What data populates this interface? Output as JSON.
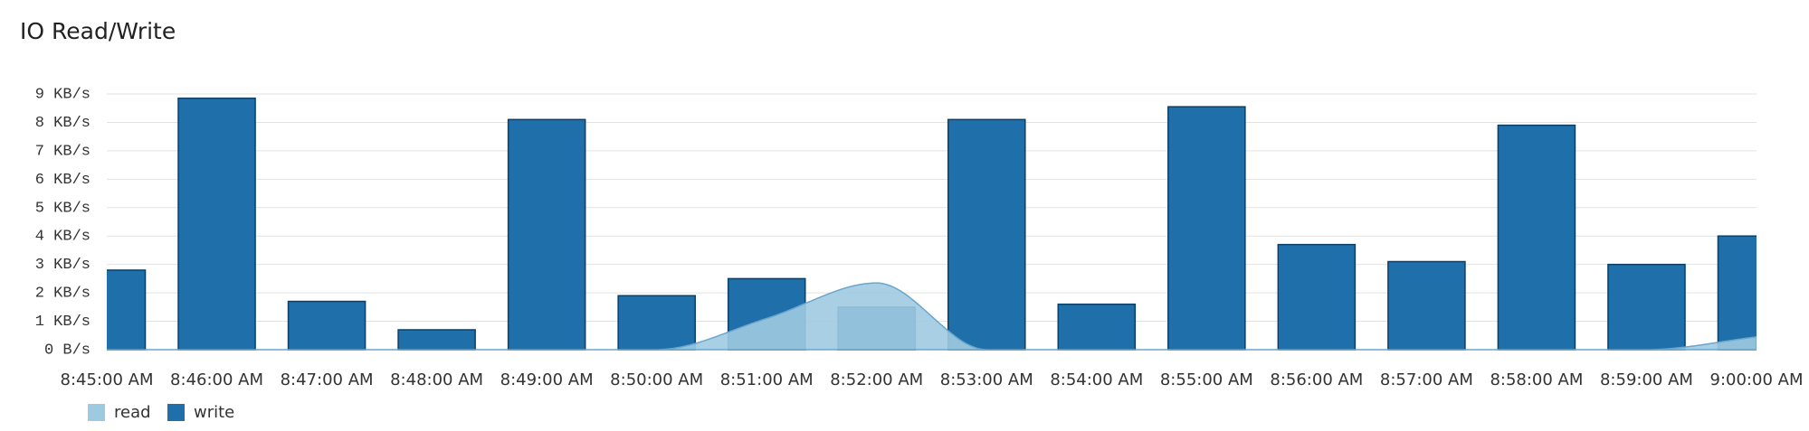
{
  "chart_data": {
    "type": "bar-area",
    "title": "IO Read/Write",
    "categories": [
      "8:45:00 AM",
      "8:46:00 AM",
      "8:47:00 AM",
      "8:48:00 AM",
      "8:49:00 AM",
      "8:50:00 AM",
      "8:51:00 AM",
      "8:52:00 AM",
      "8:53:00 AM",
      "8:54:00 AM",
      "8:55:00 AM",
      "8:56:00 AM",
      "8:57:00 AM",
      "8:58:00 AM",
      "8:59:00 AM",
      "9:00:00 AM"
    ],
    "series": [
      {
        "name": "read",
        "color": "#9ecae1",
        "values": [
          0,
          0,
          0,
          0,
          0,
          0,
          1.1,
          2.35,
          0,
          0,
          0,
          0,
          0,
          0,
          0,
          0.45
        ]
      },
      {
        "name": "write",
        "color": "#1f6fab",
        "values": [
          2.8,
          8.85,
          1.7,
          0.7,
          8.1,
          1.9,
          2.5,
          1.5,
          8.1,
          1.6,
          8.55,
          3.7,
          3.1,
          7.9,
          3.0,
          4.0
        ]
      }
    ],
    "ylim": [
      0,
      9
    ],
    "yticks": [
      {
        "value": 0,
        "label": "0 B/s"
      },
      {
        "value": 1,
        "label": "1 KB/s"
      },
      {
        "value": 2,
        "label": "2 KB/s"
      },
      {
        "value": 3,
        "label": "3 KB/s"
      },
      {
        "value": 4,
        "label": "4 KB/s"
      },
      {
        "value": 5,
        "label": "5 KB/s"
      },
      {
        "value": 6,
        "label": "6 KB/s"
      },
      {
        "value": 7,
        "label": "7 KB/s"
      },
      {
        "value": 8,
        "label": "8 KB/s"
      },
      {
        "value": 9,
        "label": "9 KB/s"
      }
    ],
    "grid": true
  }
}
